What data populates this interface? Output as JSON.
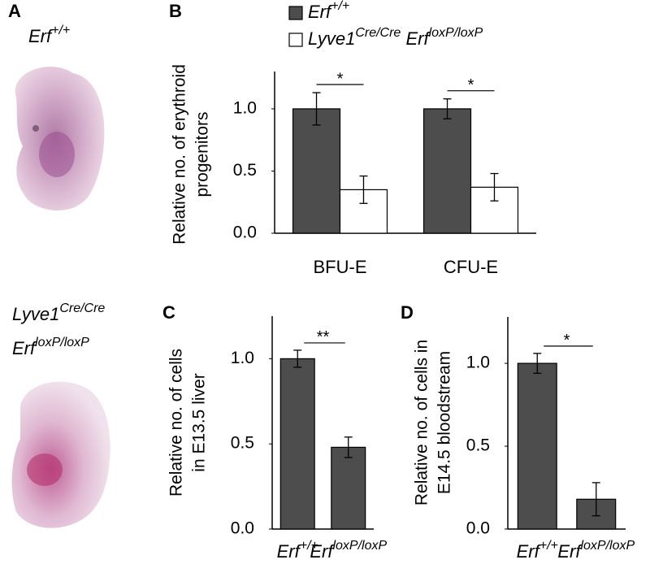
{
  "panel_labels": [
    "A",
    "B",
    "C",
    "D"
  ],
  "panel_a": {
    "genotypes": [
      [
        [
          {
            "t": "Erf"
          },
          {
            "t": "+/+",
            "sup": true
          }
        ]
      ],
      [
        [
          {
            "t": "Lyve1"
          },
          {
            "t": "Cre/Cre",
            "sup": true
          }
        ],
        [
          {
            "t": "Erf"
          },
          {
            "t": "loxP/loxP",
            "sup": true
          }
        ]
      ]
    ]
  },
  "chart_data": [
    {
      "type": "bar",
      "ylabel": [
        "Relative no. of  erythroid",
        "progenitors"
      ],
      "categories": [
        "BFU-E",
        "CFU-E"
      ],
      "series": [
        {
          "name": [
            {
              "t": "Erf"
            },
            {
              "t": "+/+",
              "sup": true
            }
          ],
          "color": "#4d4d4d",
          "values": [
            1.0,
            1.0
          ],
          "errors": [
            0.13,
            0.08
          ]
        },
        {
          "name": [
            {
              "t": "Lyve1"
            },
            {
              "t": "Cre/Cre",
              "sup": true
            },
            {
              "t": " Erf"
            },
            {
              "t": "loxP/loxP",
              "sup": true
            }
          ],
          "color": "#ffffff",
          "values": [
            0.35,
            0.37
          ],
          "errors": [
            0.11,
            0.11
          ]
        }
      ],
      "significance": [
        "*",
        "*"
      ],
      "ylim": [
        0,
        1.3
      ],
      "yticks": [
        {
          "value": 0,
          "label": "0.0"
        },
        {
          "value": 0.5,
          "label": "0.5"
        },
        {
          "value": 1,
          "label": "1.0"
        }
      ]
    },
    {
      "type": "bar",
      "ylabel": [
        "Relative no. of cells",
        "in E13.5  liver"
      ],
      "categories": [
        [
          {
            "t": "Erf"
          },
          {
            "t": "+/+",
            "sup": true
          }
        ],
        [
          {
            "t": "Erf"
          },
          {
            "t": "loxP/loxP",
            "sup": true
          }
        ]
      ],
      "color": "#4d4d4d",
      "values": [
        1.0,
        0.48
      ],
      "errors": [
        0.05,
        0.06
      ],
      "significance": "**",
      "ylim": [
        0,
        1.25
      ],
      "yticks": [
        {
          "value": 0,
          "label": "0.0"
        },
        {
          "value": 0.5,
          "label": "0.5"
        },
        {
          "value": 1,
          "label": "1.0"
        }
      ]
    },
    {
      "type": "bar",
      "ylabel": [
        "Relative no. of cells in",
        "E14.5 bloodstream"
      ],
      "categories": [
        [
          {
            "t": "Erf"
          },
          {
            "t": "+/+",
            "sup": true
          }
        ],
        [
          {
            "t": "Erf"
          },
          {
            "t": "loxP/loxP",
            "sup": true
          }
        ]
      ],
      "color": "#4d4d4d",
      "values": [
        1.0,
        0.18
      ],
      "errors": [
        0.06,
        0.1
      ],
      "significance": "*",
      "ylim": [
        0,
        1.28
      ],
      "yticks": [
        {
          "value": 0,
          "label": "0.0"
        },
        {
          "value": 0.5,
          "label": "0.5"
        },
        {
          "value": 1,
          "label": "1.0"
        }
      ]
    }
  ]
}
